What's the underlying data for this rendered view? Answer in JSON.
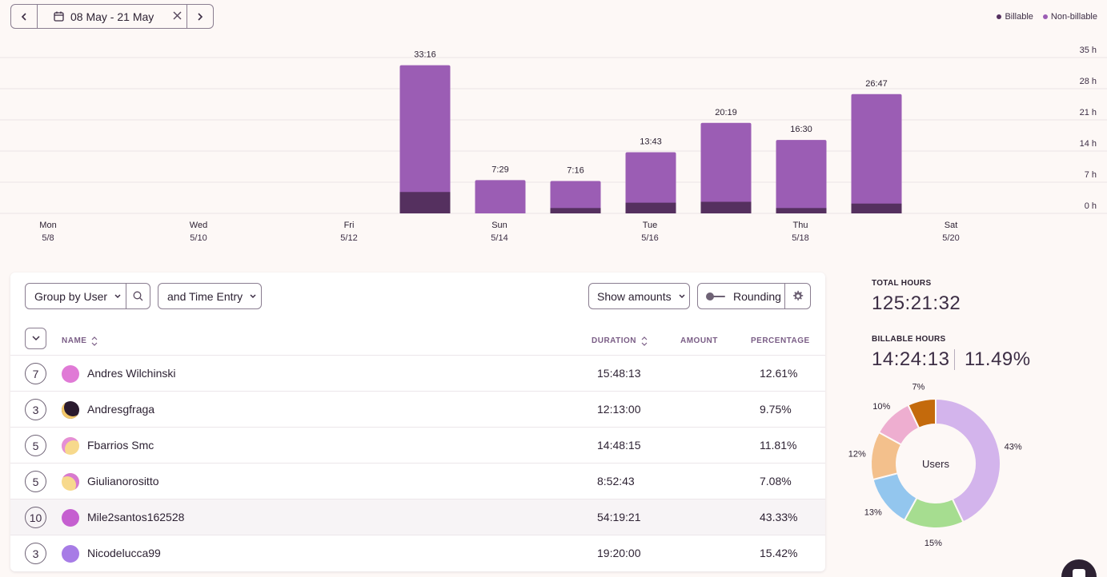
{
  "date_range": {
    "label": "08 May - 21 May"
  },
  "legend": [
    {
      "label": "Billable",
      "color": "#55305f"
    },
    {
      "label": "Non-billable",
      "color": "#9b5db4"
    }
  ],
  "chart_data": {
    "type": "bar",
    "stacked": true,
    "categories": [
      "5/8",
      "5/9",
      "5/10",
      "5/11",
      "5/12",
      "5/13",
      "5/14",
      "5/15",
      "5/16",
      "5/17",
      "5/18",
      "5/19",
      "5/20",
      "5/21"
    ],
    "x_tick_labels": [
      {
        "day": "Mon",
        "date": "5/8"
      },
      {
        "day": "Wed",
        "date": "5/10"
      },
      {
        "day": "Fri",
        "date": "5/12"
      },
      {
        "day": "Sun",
        "date": "5/14"
      },
      {
        "day": "Tue",
        "date": "5/16"
      },
      {
        "day": "Thu",
        "date": "5/18"
      },
      {
        "day": "Sat",
        "date": "5/20"
      }
    ],
    "series": [
      {
        "name": "Billable",
        "values": [
          0,
          0,
          0,
          0,
          0,
          4.8,
          0,
          1.2,
          2.4,
          2.6,
          1.2,
          2.2,
          0,
          0
        ]
      },
      {
        "name": "Non-billable",
        "values": [
          0,
          0,
          0,
          0,
          0,
          28.47,
          7.48,
          6.07,
          11.32,
          17.72,
          15.3,
          24.58,
          0,
          0
        ]
      }
    ],
    "totals_labels": [
      "",
      "",
      "",
      "",
      "",
      "33:16",
      "7:29",
      "7:16",
      "13:43",
      "20:19",
      "16:30",
      "26:47",
      "",
      ""
    ],
    "y_ticks": [
      "0 h",
      "7 h",
      "14 h",
      "21 h",
      "28 h",
      "35 h"
    ],
    "ylim": [
      0,
      35
    ],
    "grid": true,
    "legend_position": "top-right"
  },
  "toolbar": {
    "group_label": "Group by User",
    "time_entry_label": "and Time Entry",
    "show_amounts_label": "Show amounts",
    "rounding_label": "Rounding"
  },
  "table": {
    "headers": {
      "name": "NAME",
      "duration": "DURATION",
      "amount": "AMOUNT",
      "percentage": "PERCENTAGE"
    },
    "rows": [
      {
        "count": "7",
        "name": "Andres Wilchinski",
        "duration": "15:48:13",
        "percentage": "12.61%",
        "avatar_color": "#e07ad6"
      },
      {
        "count": "3",
        "name": "Andresgfraga",
        "duration": "12:13:00",
        "percentage": "9.75%",
        "avatar_color": "#2a1a2e"
      },
      {
        "count": "5",
        "name": "Fbarrios Smc",
        "duration": "14:48:15",
        "percentage": "11.81%",
        "avatar_color": "#f3b86a"
      },
      {
        "count": "5",
        "name": "Giulianorositto",
        "duration": "8:52:43",
        "percentage": "7.08%",
        "avatar_color": "#f3c86a"
      },
      {
        "count": "10",
        "name": "Mile2santos162528",
        "duration": "54:19:21",
        "percentage": "43.33%",
        "avatar_color": "#c55fd0"
      },
      {
        "count": "3",
        "name": "Nicodelucca99",
        "duration": "19:20:00",
        "percentage": "15.42%",
        "avatar_color": "#a77ce6"
      }
    ]
  },
  "summary": {
    "total_label": "TOTAL HOURS",
    "total_value": "125:21:32",
    "billable_label": "BILLABLE HOURS",
    "billable_value": "14:24:13",
    "billable_pct": "11.49%"
  },
  "donut": {
    "center_label": "Users",
    "slices": [
      {
        "value": 43,
        "label": "43%",
        "color": "#d3b4ec"
      },
      {
        "value": 15,
        "label": "15%",
        "color": "#a6dd90"
      },
      {
        "value": 13,
        "label": "13%",
        "color": "#93c6ee"
      },
      {
        "value": 12,
        "label": "12%",
        "color": "#f3c08c"
      },
      {
        "value": 10,
        "label": "10%",
        "color": "#eeaed0"
      },
      {
        "value": 7,
        "label": "7%",
        "color": "#c46a0c"
      }
    ]
  }
}
